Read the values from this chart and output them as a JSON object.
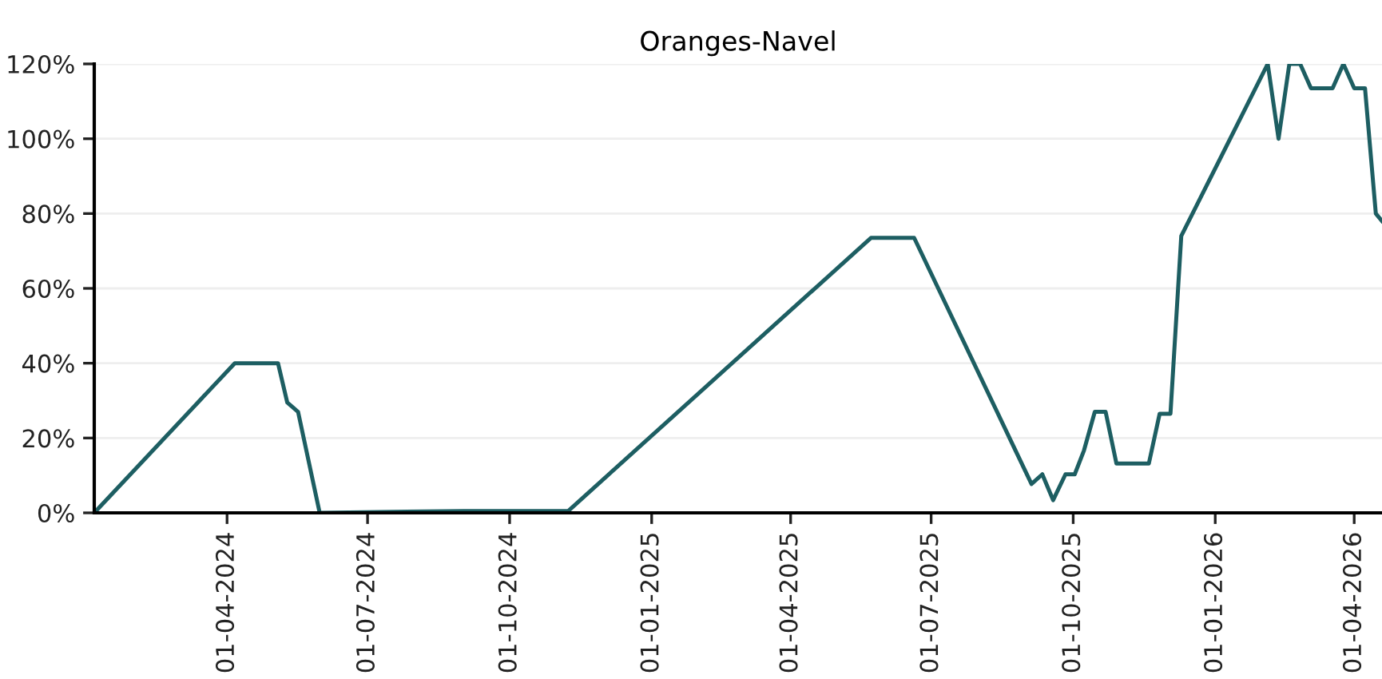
{
  "chart_data": {
    "type": "line",
    "title": "Oranges-Navel",
    "x": [
      "2024-01-06",
      "2024-04-06",
      "2024-05-04",
      "2024-05-10",
      "2024-05-17",
      "2024-05-31",
      "2024-09-01",
      "2024-11-08",
      "2025-05-23",
      "2025-06-20",
      "2025-09-04",
      "2025-09-11",
      "2025-09-18",
      "2025-09-26",
      "2025-10-02",
      "2025-10-08",
      "2025-10-15",
      "2025-10-22",
      "2025-10-29",
      "2025-11-19",
      "2025-11-26",
      "2025-12-03",
      "2025-12-10",
      "2026-02-04",
      "2026-02-11",
      "2026-02-18",
      "2026-02-25",
      "2026-03-04",
      "2026-03-18",
      "2026-03-25",
      "2026-04-01",
      "2026-04-08",
      "2026-04-15",
      "2026-04-19"
    ],
    "series": [
      {
        "color": "#1d5e62",
        "values": [
          0,
          40,
          40,
          29.5,
          27,
          0,
          0.5,
          0.5,
          73.5,
          73.5,
          7.7,
          10.3,
          3.4,
          10.3,
          10.3,
          16.7,
          27,
          27,
          13.2,
          13.2,
          26.5,
          26.5,
          74,
          120,
          100,
          120,
          120,
          113.5,
          113.5,
          120,
          113.5,
          113.5,
          80,
          78
        ]
      }
    ],
    "xlim": [
      "2024-01-06",
      "2026-04-19"
    ],
    "xticks": [
      {
        "value": "2024-04-01",
        "label": "01-04-2024"
      },
      {
        "value": "2024-07-01",
        "label": "01-07-2024"
      },
      {
        "value": "2024-10-01",
        "label": "01-10-2024"
      },
      {
        "value": "2025-01-01",
        "label": "01-01-2025"
      },
      {
        "value": "2025-04-01",
        "label": "01-04-2025"
      },
      {
        "value": "2025-07-01",
        "label": "01-07-2025"
      },
      {
        "value": "2025-10-01",
        "label": "01-10-2025"
      },
      {
        "value": "2026-01-01",
        "label": "01-01-2026"
      },
      {
        "value": "2026-04-01",
        "label": "01-04-2026"
      }
    ],
    "ylim": [
      0,
      120
    ],
    "yticks": [
      {
        "value": 0,
        "label": "0%"
      },
      {
        "value": 20,
        "label": "20%"
      },
      {
        "value": 40,
        "label": "40%"
      },
      {
        "value": 60,
        "label": "60%"
      },
      {
        "value": 80,
        "label": "80%"
      },
      {
        "value": 100,
        "label": "100%"
      },
      {
        "value": 120,
        "label": "120%"
      }
    ],
    "grid": "y",
    "line_style": "solid"
  }
}
